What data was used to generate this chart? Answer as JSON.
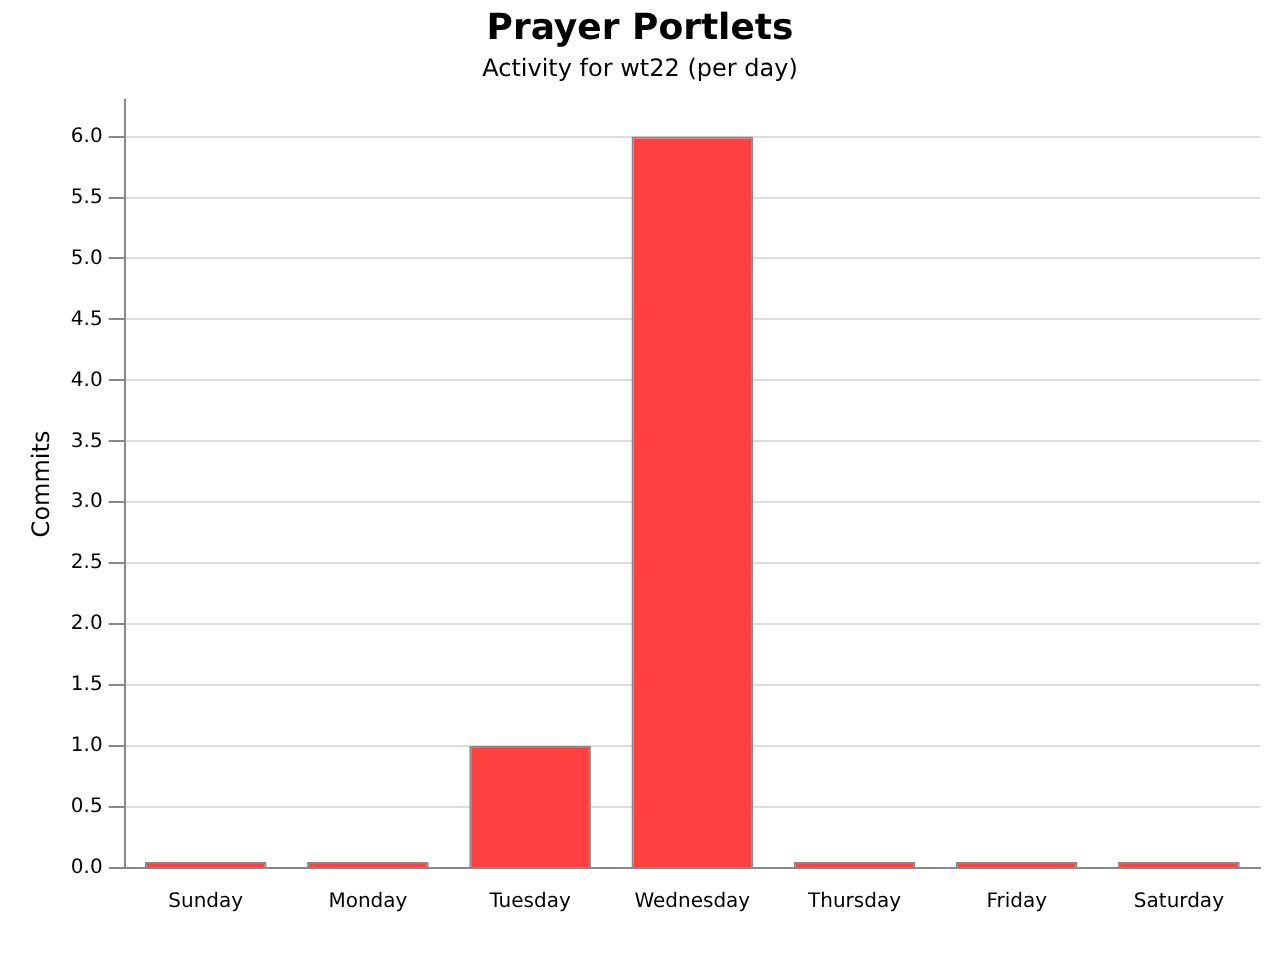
{
  "chart_data": {
    "type": "bar",
    "title": "Prayer Portlets",
    "subtitle": "Activity for wt22 (per day)",
    "ylabel": "Commits",
    "categories": [
      "Sunday",
      "Monday",
      "Tuesday",
      "Wednesday",
      "Thursday",
      "Friday",
      "Saturday"
    ],
    "values": [
      0,
      0,
      1,
      6,
      0,
      0,
      0
    ],
    "color": "#ff4040",
    "ylim": [
      0,
      6.3
    ],
    "yticks": [
      {
        "value": 0,
        "label": "0.0"
      },
      {
        "value": 0.5,
        "label": "0.5"
      },
      {
        "value": 1,
        "label": "1.0"
      },
      {
        "value": 1.5,
        "label": "1.5"
      },
      {
        "value": 2,
        "label": "2.0"
      },
      {
        "value": 2.5,
        "label": "2.5"
      },
      {
        "value": 3,
        "label": "3.0"
      },
      {
        "value": 3.5,
        "label": "3.5"
      },
      {
        "value": 4,
        "label": "4.0"
      },
      {
        "value": 4.5,
        "label": "4.5"
      },
      {
        "value": 5,
        "label": "5.0"
      },
      {
        "value": 5.5,
        "label": "5.5"
      },
      {
        "value": 6,
        "label": "6.0"
      }
    ],
    "grid": "y",
    "legend": false
  }
}
